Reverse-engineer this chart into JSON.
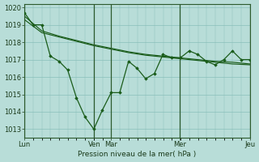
{
  "background_color": "#b8ddd8",
  "plot_bg_color": "#b8ddd8",
  "grid_color": "#8abfba",
  "line_color": "#1a5c1a",
  "marker_color": "#1a5c1a",
  "ylabel_min": 1012.5,
  "ylabel_max": 1020.2,
  "yticks": [
    1013,
    1014,
    1015,
    1016,
    1017,
    1018,
    1019,
    1020
  ],
  "xlabel": "Pression niveau de la mer( hPa )",
  "day_labels": [
    "Lun",
    "Ven",
    "Mar",
    "Mer",
    "Jeu"
  ],
  "day_positions": [
    0.0,
    0.31,
    0.385,
    0.69,
    1.0
  ],
  "series1_x": [
    0,
    0.038,
    0.077,
    0.115,
    0.154,
    0.192,
    0.231,
    0.269,
    0.308,
    0.346,
    0.385,
    0.423,
    0.462,
    0.5,
    0.538,
    0.577,
    0.615,
    0.654,
    0.692,
    0.731,
    0.769,
    0.808,
    0.846,
    0.885,
    0.923,
    0.962,
    1.0
  ],
  "series1_y": [
    1019.7,
    1019.0,
    1019.0,
    1017.2,
    1016.9,
    1016.4,
    1014.8,
    1013.7,
    1013.0,
    1014.1,
    1015.1,
    1015.1,
    1016.9,
    1016.5,
    1015.9,
    1016.2,
    1017.3,
    1017.1,
    1017.1,
    1017.5,
    1017.3,
    1016.9,
    1016.7,
    1017.0,
    1017.5,
    1017.0,
    1017.0
  ],
  "series2_x": [
    0,
    0.077,
    0.154,
    0.231,
    0.308,
    0.385,
    0.462,
    0.538,
    0.615,
    0.692,
    0.769,
    0.846,
    0.923,
    1.0
  ],
  "series2_y": [
    1019.5,
    1018.65,
    1018.35,
    1018.1,
    1017.85,
    1017.65,
    1017.45,
    1017.3,
    1017.2,
    1017.1,
    1017.0,
    1016.9,
    1016.85,
    1016.75
  ],
  "series3_x": [
    0,
    0.077,
    0.154,
    0.231,
    0.308,
    0.385,
    0.462,
    0.538,
    0.615,
    0.692,
    0.769,
    0.846,
    0.923,
    1.0
  ],
  "series3_y": [
    1019.3,
    1018.55,
    1018.3,
    1018.05,
    1017.8,
    1017.6,
    1017.4,
    1017.25,
    1017.15,
    1017.05,
    1016.95,
    1016.85,
    1016.75,
    1016.7
  ]
}
